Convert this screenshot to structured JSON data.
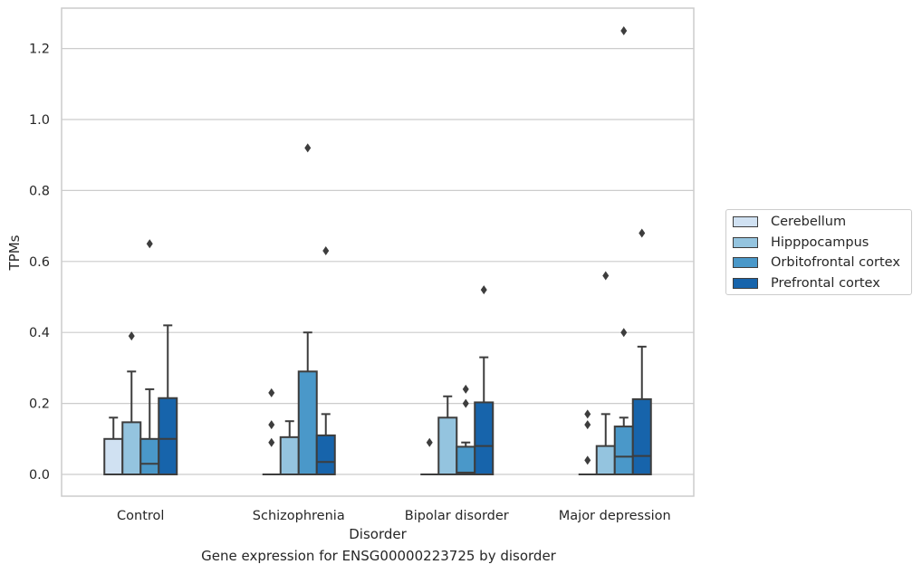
{
  "chart_data": {
    "type": "box",
    "title": "",
    "caption": "Gene expression for ENSG00000223725 by disorder",
    "xlabel": "Disorder",
    "ylabel": "TPMs",
    "ylim": [
      -0.06,
      1.32
    ],
    "yticks": [
      0.0,
      0.2,
      0.4,
      0.6,
      0.8,
      1.0,
      1.2
    ],
    "ytick_labels": [
      "0.0",
      "0.2",
      "0.4",
      "0.6",
      "0.8",
      "1.0",
      "1.2"
    ],
    "grid": "horizontal",
    "legend_position": "right",
    "categories": [
      "Control",
      "Schizophrenia",
      "Bipolar disorder",
      "Major depression"
    ],
    "series": [
      {
        "name": "Cerebellum",
        "color": "#d0e1f2",
        "boxes": [
          {
            "q1": 0.0,
            "median": 0.0,
            "q3": 0.1,
            "whisker_low": 0.0,
            "whisker_high": 0.16,
            "outliers": []
          },
          {
            "q1": 0.0,
            "median": 0.0,
            "q3": 0.0,
            "whisker_low": 0.0,
            "whisker_high": 0.0,
            "outliers": [
              0.09,
              0.14,
              0.23
            ]
          },
          {
            "q1": 0.0,
            "median": 0.0,
            "q3": 0.0,
            "whisker_low": 0.0,
            "whisker_high": 0.0,
            "outliers": [
              0.09
            ]
          },
          {
            "q1": 0.0,
            "median": 0.0,
            "q3": 0.0,
            "whisker_low": 0.0,
            "whisker_high": 0.0,
            "outliers": [
              0.04,
              0.14,
              0.17
            ]
          }
        ]
      },
      {
        "name": "Hipppocampus",
        "color": "#94c4df",
        "boxes": [
          {
            "q1": 0.0,
            "median": 0.0,
            "q3": 0.147,
            "whisker_low": 0.0,
            "whisker_high": 0.29,
            "outliers": [
              0.39
            ]
          },
          {
            "q1": 0.0,
            "median": 0.0,
            "q3": 0.105,
            "whisker_low": 0.0,
            "whisker_high": 0.15,
            "outliers": []
          },
          {
            "q1": 0.0,
            "median": 0.0,
            "q3": 0.16,
            "whisker_low": 0.0,
            "whisker_high": 0.22,
            "outliers": []
          },
          {
            "q1": 0.0,
            "median": 0.0,
            "q3": 0.08,
            "whisker_low": 0.0,
            "whisker_high": 0.17,
            "outliers": [
              0.56
            ]
          }
        ]
      },
      {
        "name": "Orbitofrontal cortex",
        "color": "#4a98c9",
        "boxes": [
          {
            "q1": 0.0,
            "median": 0.03,
            "q3": 0.1,
            "whisker_low": 0.0,
            "whisker_high": 0.24,
            "outliers": [
              0.65
            ]
          },
          {
            "q1": 0.0,
            "median": 0.0,
            "q3": 0.29,
            "whisker_low": 0.0,
            "whisker_high": 0.4,
            "outliers": [
              0.92
            ]
          },
          {
            "q1": 0.0,
            "median": 0.005,
            "q3": 0.078,
            "whisker_low": 0.0,
            "whisker_high": 0.09,
            "outliers": [
              0.2,
              0.24
            ]
          },
          {
            "q1": 0.0,
            "median": 0.05,
            "q3": 0.135,
            "whisker_low": 0.0,
            "whisker_high": 0.16,
            "outliers": [
              0.4,
              1.25
            ]
          }
        ]
      },
      {
        "name": "Prefrontal cortex",
        "color": "#1764ab",
        "boxes": [
          {
            "q1": 0.0,
            "median": 0.1,
            "q3": 0.215,
            "whisker_low": 0.0,
            "whisker_high": 0.42,
            "outliers": []
          },
          {
            "q1": 0.0,
            "median": 0.035,
            "q3": 0.11,
            "whisker_low": 0.0,
            "whisker_high": 0.17,
            "outliers": [
              0.63
            ]
          },
          {
            "q1": 0.0,
            "median": 0.08,
            "q3": 0.203,
            "whisker_low": 0.0,
            "whisker_high": 0.33,
            "outliers": [
              0.52
            ]
          },
          {
            "q1": 0.0,
            "median": 0.052,
            "q3": 0.212,
            "whisker_low": 0.0,
            "whisker_high": 0.36,
            "outliers": [
              0.68
            ]
          }
        ]
      }
    ]
  }
}
